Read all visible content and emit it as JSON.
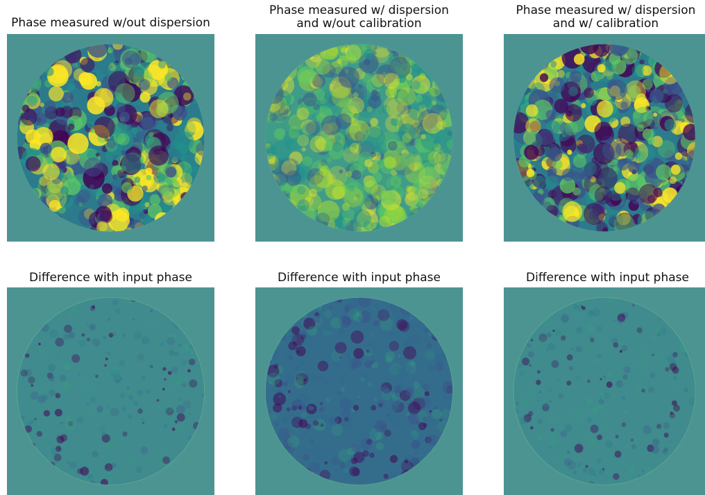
{
  "figure": {
    "panels": [
      {
        "id": "p1",
        "title": "Phase measured w/out dispersion",
        "kind": "phase",
        "variant": "strong"
      },
      {
        "id": "p2",
        "title": "Phase measured w/ dispersion\nand w/out calibration",
        "kind": "phase",
        "variant": "washed"
      },
      {
        "id": "p3",
        "title": "Phase measured w/ dispersion\nand w/ calibration",
        "kind": "phase",
        "variant": "strong"
      },
      {
        "id": "p4",
        "title": "Difference with input phase",
        "kind": "difference",
        "variant": "low"
      },
      {
        "id": "p5",
        "title": "Difference with input phase",
        "kind": "difference",
        "variant": "high"
      },
      {
        "id": "p6",
        "title": "Difference with input phase",
        "kind": "difference",
        "variant": "low"
      }
    ],
    "colors": {
      "background_fill": "#4c9492",
      "viridis_dark": "#440154",
      "viridis_mid": "#21918c",
      "viridis_bright": "#fde725"
    }
  }
}
